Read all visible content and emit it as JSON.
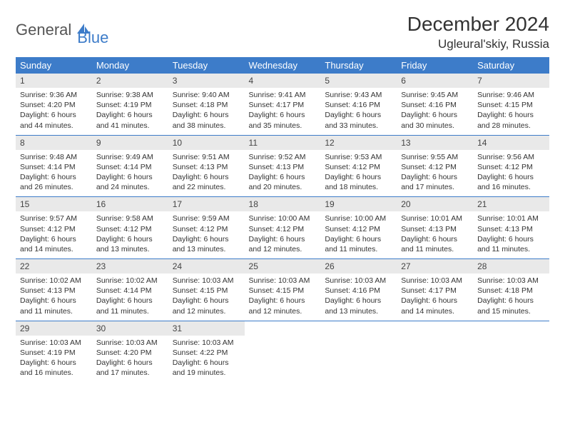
{
  "brand": {
    "part1": "General",
    "part2": "Blue"
  },
  "title": "December 2024",
  "location": "Ugleural'skiy, Russia",
  "colors": {
    "accent": "#3d7cc9",
    "header_bg": "#3d7cc9",
    "daynum_bg": "#e9e9e9",
    "text": "#333333",
    "bg": "#ffffff"
  },
  "weekdays": [
    "Sunday",
    "Monday",
    "Tuesday",
    "Wednesday",
    "Thursday",
    "Friday",
    "Saturday"
  ],
  "weeks": [
    [
      {
        "n": "1",
        "sr": "Sunrise: 9:36 AM",
        "ss": "Sunset: 4:20 PM",
        "d1": "Daylight: 6 hours",
        "d2": "and 44 minutes."
      },
      {
        "n": "2",
        "sr": "Sunrise: 9:38 AM",
        "ss": "Sunset: 4:19 PM",
        "d1": "Daylight: 6 hours",
        "d2": "and 41 minutes."
      },
      {
        "n": "3",
        "sr": "Sunrise: 9:40 AM",
        "ss": "Sunset: 4:18 PM",
        "d1": "Daylight: 6 hours",
        "d2": "and 38 minutes."
      },
      {
        "n": "4",
        "sr": "Sunrise: 9:41 AM",
        "ss": "Sunset: 4:17 PM",
        "d1": "Daylight: 6 hours",
        "d2": "and 35 minutes."
      },
      {
        "n": "5",
        "sr": "Sunrise: 9:43 AM",
        "ss": "Sunset: 4:16 PM",
        "d1": "Daylight: 6 hours",
        "d2": "and 33 minutes."
      },
      {
        "n": "6",
        "sr": "Sunrise: 9:45 AM",
        "ss": "Sunset: 4:16 PM",
        "d1": "Daylight: 6 hours",
        "d2": "and 30 minutes."
      },
      {
        "n": "7",
        "sr": "Sunrise: 9:46 AM",
        "ss": "Sunset: 4:15 PM",
        "d1": "Daylight: 6 hours",
        "d2": "and 28 minutes."
      }
    ],
    [
      {
        "n": "8",
        "sr": "Sunrise: 9:48 AM",
        "ss": "Sunset: 4:14 PM",
        "d1": "Daylight: 6 hours",
        "d2": "and 26 minutes."
      },
      {
        "n": "9",
        "sr": "Sunrise: 9:49 AM",
        "ss": "Sunset: 4:14 PM",
        "d1": "Daylight: 6 hours",
        "d2": "and 24 minutes."
      },
      {
        "n": "10",
        "sr": "Sunrise: 9:51 AM",
        "ss": "Sunset: 4:13 PM",
        "d1": "Daylight: 6 hours",
        "d2": "and 22 minutes."
      },
      {
        "n": "11",
        "sr": "Sunrise: 9:52 AM",
        "ss": "Sunset: 4:13 PM",
        "d1": "Daylight: 6 hours",
        "d2": "and 20 minutes."
      },
      {
        "n": "12",
        "sr": "Sunrise: 9:53 AM",
        "ss": "Sunset: 4:12 PM",
        "d1": "Daylight: 6 hours",
        "d2": "and 18 minutes."
      },
      {
        "n": "13",
        "sr": "Sunrise: 9:55 AM",
        "ss": "Sunset: 4:12 PM",
        "d1": "Daylight: 6 hours",
        "d2": "and 17 minutes."
      },
      {
        "n": "14",
        "sr": "Sunrise: 9:56 AM",
        "ss": "Sunset: 4:12 PM",
        "d1": "Daylight: 6 hours",
        "d2": "and 16 minutes."
      }
    ],
    [
      {
        "n": "15",
        "sr": "Sunrise: 9:57 AM",
        "ss": "Sunset: 4:12 PM",
        "d1": "Daylight: 6 hours",
        "d2": "and 14 minutes."
      },
      {
        "n": "16",
        "sr": "Sunrise: 9:58 AM",
        "ss": "Sunset: 4:12 PM",
        "d1": "Daylight: 6 hours",
        "d2": "and 13 minutes."
      },
      {
        "n": "17",
        "sr": "Sunrise: 9:59 AM",
        "ss": "Sunset: 4:12 PM",
        "d1": "Daylight: 6 hours",
        "d2": "and 13 minutes."
      },
      {
        "n": "18",
        "sr": "Sunrise: 10:00 AM",
        "ss": "Sunset: 4:12 PM",
        "d1": "Daylight: 6 hours",
        "d2": "and 12 minutes."
      },
      {
        "n": "19",
        "sr": "Sunrise: 10:00 AM",
        "ss": "Sunset: 4:12 PM",
        "d1": "Daylight: 6 hours",
        "d2": "and 11 minutes."
      },
      {
        "n": "20",
        "sr": "Sunrise: 10:01 AM",
        "ss": "Sunset: 4:13 PM",
        "d1": "Daylight: 6 hours",
        "d2": "and 11 minutes."
      },
      {
        "n": "21",
        "sr": "Sunrise: 10:01 AM",
        "ss": "Sunset: 4:13 PM",
        "d1": "Daylight: 6 hours",
        "d2": "and 11 minutes."
      }
    ],
    [
      {
        "n": "22",
        "sr": "Sunrise: 10:02 AM",
        "ss": "Sunset: 4:13 PM",
        "d1": "Daylight: 6 hours",
        "d2": "and 11 minutes."
      },
      {
        "n": "23",
        "sr": "Sunrise: 10:02 AM",
        "ss": "Sunset: 4:14 PM",
        "d1": "Daylight: 6 hours",
        "d2": "and 11 minutes."
      },
      {
        "n": "24",
        "sr": "Sunrise: 10:03 AM",
        "ss": "Sunset: 4:15 PM",
        "d1": "Daylight: 6 hours",
        "d2": "and 12 minutes."
      },
      {
        "n": "25",
        "sr": "Sunrise: 10:03 AM",
        "ss": "Sunset: 4:15 PM",
        "d1": "Daylight: 6 hours",
        "d2": "and 12 minutes."
      },
      {
        "n": "26",
        "sr": "Sunrise: 10:03 AM",
        "ss": "Sunset: 4:16 PM",
        "d1": "Daylight: 6 hours",
        "d2": "and 13 minutes."
      },
      {
        "n": "27",
        "sr": "Sunrise: 10:03 AM",
        "ss": "Sunset: 4:17 PM",
        "d1": "Daylight: 6 hours",
        "d2": "and 14 minutes."
      },
      {
        "n": "28",
        "sr": "Sunrise: 10:03 AM",
        "ss": "Sunset: 4:18 PM",
        "d1": "Daylight: 6 hours",
        "d2": "and 15 minutes."
      }
    ],
    [
      {
        "n": "29",
        "sr": "Sunrise: 10:03 AM",
        "ss": "Sunset: 4:19 PM",
        "d1": "Daylight: 6 hours",
        "d2": "and 16 minutes."
      },
      {
        "n": "30",
        "sr": "Sunrise: 10:03 AM",
        "ss": "Sunset: 4:20 PM",
        "d1": "Daylight: 6 hours",
        "d2": "and 17 minutes."
      },
      {
        "n": "31",
        "sr": "Sunrise: 10:03 AM",
        "ss": "Sunset: 4:22 PM",
        "d1": "Daylight: 6 hours",
        "d2": "and 19 minutes."
      },
      {
        "empty": true
      },
      {
        "empty": true
      },
      {
        "empty": true
      },
      {
        "empty": true
      }
    ]
  ]
}
